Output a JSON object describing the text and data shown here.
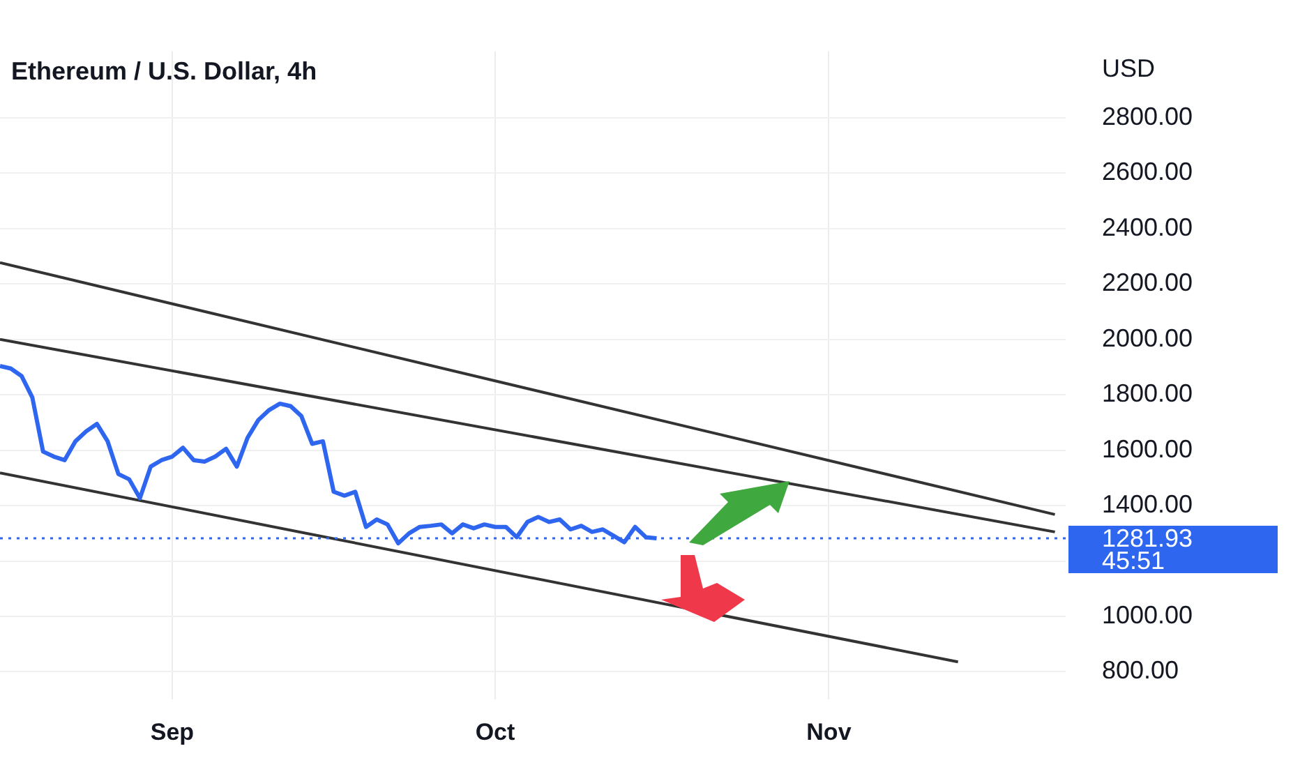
{
  "chart_data": {
    "type": "line",
    "title": "Ethereum / U.S. Dollar, 4h",
    "ylabel": "USD",
    "xlim": [
      "--08-16",
      "--11-23"
    ],
    "ylim": [
      700,
      3040
    ],
    "xticks": [
      {
        "value": "--09-01",
        "label": "Sep"
      },
      {
        "value": "--10-01",
        "label": "Oct"
      },
      {
        "value": "--11-01",
        "label": "Nov"
      }
    ],
    "yticks": [
      {
        "value": 800,
        "label": "800.00"
      },
      {
        "value": 1000,
        "label": "1000.00"
      },
      {
        "value": 1200,
        "label": null
      },
      {
        "value": 1400,
        "label": "1400.00"
      },
      {
        "value": 1600,
        "label": "1600.00"
      },
      {
        "value": 1800,
        "label": "1800.00"
      },
      {
        "value": 2000,
        "label": "2000.00"
      },
      {
        "value": 2200,
        "label": "2200.00"
      },
      {
        "value": 2400,
        "label": "2400.00"
      },
      {
        "value": 2600,
        "label": "2600.00"
      },
      {
        "value": 2800,
        "label": "2800.00"
      }
    ],
    "grid": true,
    "legend": false,
    "marker": "none",
    "ref_lines": [
      {
        "axis": "y",
        "value": 1281.93,
        "label": "1281.93",
        "color": "#2f66f0",
        "line_style": "dotted"
      }
    ],
    "annotations": [
      "45:51"
    ],
    "series": [
      {
        "color": "#2f66f0",
        "x": [
          "--08-16",
          "--08-17",
          "--08-18",
          "--08-19",
          "--08-20",
          "--08-21",
          "--08-22",
          "--08-23",
          "--08-24",
          "--08-25",
          "--08-26",
          "--08-27",
          "--08-28",
          "--08-29",
          "--08-30",
          "--08-31",
          "--09-01",
          "--09-02",
          "--09-03",
          "--09-04",
          "--09-05",
          "--09-06",
          "--09-07",
          "--09-08",
          "--09-09",
          "--09-10",
          "--09-11",
          "--09-12",
          "--09-13",
          "--09-14",
          "--09-15",
          "--09-16",
          "--09-17",
          "--09-18",
          "--09-19",
          "--09-20",
          "--09-21",
          "--09-22",
          "--09-23",
          "--09-24",
          "--09-25",
          "--09-26",
          "--09-27",
          "--09-28",
          "--09-29",
          "--09-30",
          "--10-01",
          "--10-02",
          "--10-03",
          "--10-04",
          "--10-05",
          "--10-06",
          "--10-07",
          "--10-08",
          "--10-09",
          "--10-10",
          "--10-11",
          "--10-12",
          "--10-13",
          "--10-14",
          "--10-15",
          "--10-16"
        ],
        "values": [
          1904,
          1895,
          1868,
          1791,
          1595,
          1577,
          1564,
          1632,
          1668,
          1695,
          1632,
          1514,
          1495,
          1427,
          1541,
          1564,
          1577,
          1609,
          1564,
          1559,
          1577,
          1605,
          1541,
          1645,
          1709,
          1745,
          1768,
          1759,
          1723,
          1623,
          1632,
          1450,
          1436,
          1450,
          1323,
          1350,
          1332,
          1264,
          1300,
          1323,
          1327,
          1332,
          1300,
          1332,
          1318,
          1332,
          1323,
          1323,
          1286,
          1341,
          1359,
          1341,
          1350,
          1314,
          1327,
          1305,
          1314,
          1291,
          1268,
          1323,
          1286,
          1282
        ]
      },
      {
        "color": "#333333",
        "x": [
          "--08-16",
          "--11-22"
        ],
        "values": [
          2277,
          1368
        ]
      },
      {
        "color": "#333333",
        "x": [
          "--08-16",
          "--11-22"
        ],
        "values": [
          2000,
          1305
        ]
      },
      {
        "color": "#333333",
        "x": [
          "--08-16",
          "--11-13"
        ],
        "values": [
          1518,
          836
        ]
      }
    ]
  }
}
